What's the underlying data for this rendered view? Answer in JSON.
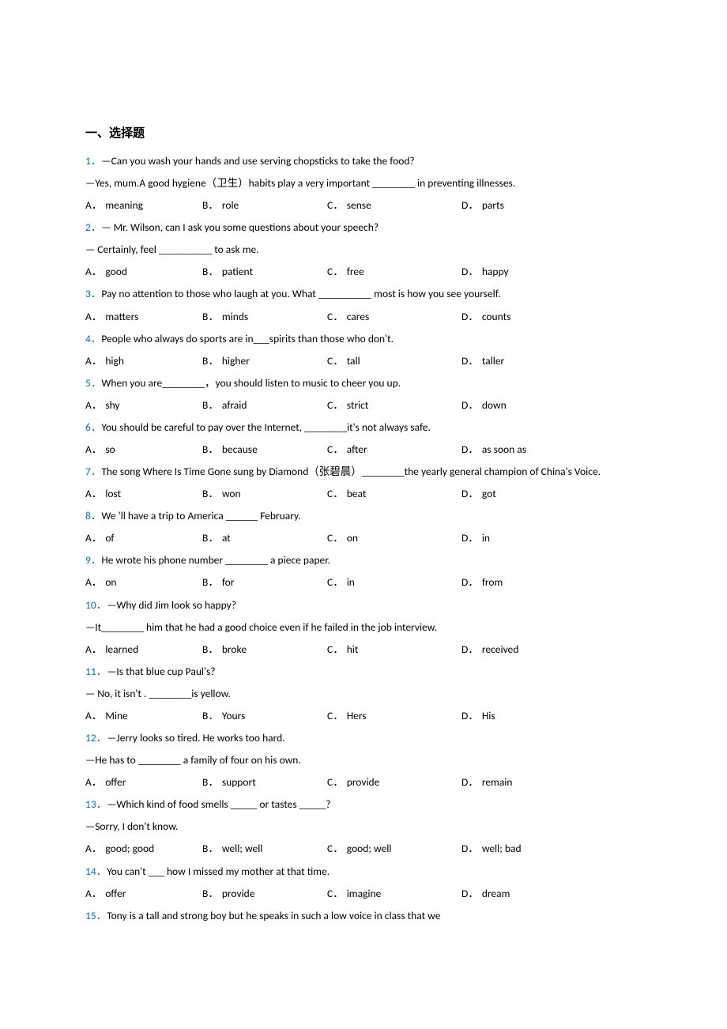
{
  "heading": "一、选择题",
  "questions": [
    {
      "num": "1．",
      "lines": [
        "—Can you wash your hands and use serving chopsticks to take the food?",
        "—Yes, mum.A good hygiene（卫生）habits play a very important ________ in preventing illnesses."
      ],
      "choices": {
        "A": "meaning",
        "B": "role",
        "C": "sense",
        "D": "parts"
      }
    },
    {
      "num": "2．",
      "lines": [
        "— Mr. Wilson, can I ask you some questions about your speech?",
        "— Certainly, feel __________ to ask me."
      ],
      "choices": {
        "A": "good",
        "B": "patient",
        "C": "free",
        "D": "happy"
      }
    },
    {
      "num": "3．",
      "lines": [
        "Pay no attention to those who laugh at you. What __________ most is how you see yourself."
      ],
      "choices": {
        "A": "matters",
        "B": "minds",
        "C": "cares",
        "D": "counts"
      }
    },
    {
      "num": "4．",
      "lines": [
        "People who always do sports are in___spirits than those who don't."
      ],
      "choices": {
        "A": "high",
        "B": "higher",
        "C": "tall",
        "D": "taller"
      }
    },
    {
      "num": "5．",
      "lines": [
        "When you are________，you should listen to music to cheer you up."
      ],
      "choices": {
        "A": "shy",
        "B": "afraid",
        "C": "strict",
        "D": "down"
      }
    },
    {
      "num": "6．",
      "lines": [
        "You should be careful to pay over the Internet, ________it's not always safe."
      ],
      "choices": {
        "A": "so",
        "B": "because",
        "C": "after",
        "D": "as soon as"
      }
    },
    {
      "num": "7．",
      "lines": [
        "The song Where Is Time Gone sung by Diamond（张碧晨）________the yearly general champion of China's Voice."
      ],
      "choices": {
        "A": "lost",
        "B": "won",
        "C": "beat",
        "D": "got"
      }
    },
    {
      "num": "8．",
      "lines": [
        "We 'll have a trip to America ______ February."
      ],
      "choices": {
        "A": "of",
        "B": "at",
        "C": "on",
        "D": "in"
      }
    },
    {
      "num": "9．",
      "lines": [
        "He wrote his phone number ________ a piece paper."
      ],
      "choices": {
        "A": "on",
        "B": "for",
        "C": "in",
        "D": "from"
      }
    },
    {
      "num": "10．",
      "lines": [
        "—Why did Jim look so happy?",
        "—It________ him that he had a good choice even if he failed in the job interview."
      ],
      "choices": {
        "A": "learned",
        "B": "broke",
        "C": "hit",
        "D": "received"
      }
    },
    {
      "num": "11．",
      "lines": [
        "—Is that blue cup Paul's?",
        "— No, it isn't . ________is yellow."
      ],
      "choices": {
        "A": "Mine",
        "B": "Yours",
        "C": "Hers",
        "D": "His"
      }
    },
    {
      "num": "12．",
      "lines": [
        "—Jerry looks so tired. He works too hard.",
        "—He has to ________ a family of four on his own."
      ],
      "choices": {
        "A": "offer",
        "B": "support",
        "C": "provide",
        "D": "remain"
      }
    },
    {
      "num": "13．",
      "lines": [
        "—Which kind of food smells _____ or tastes _____?",
        "—Sorry, I don't know."
      ],
      "choices": {
        "A": "good; good",
        "B": "well; well",
        "C": "good; well",
        "D": "well; bad"
      }
    },
    {
      "num": "14．",
      "lines": [
        "You can't ___ how I missed my mother at that time."
      ],
      "choices": {
        "A": "offer",
        "B": "provide",
        "C": "imagine",
        "D": "dream"
      }
    },
    {
      "num": "15．",
      "lines": [
        "Tony is a tall and strong boy but he speaks in such a low voice in class that we"
      ],
      "choices": null
    }
  ],
  "labels": {
    "A": "A．",
    "B": "B．",
    "C": "C．",
    "D": "D．"
  }
}
